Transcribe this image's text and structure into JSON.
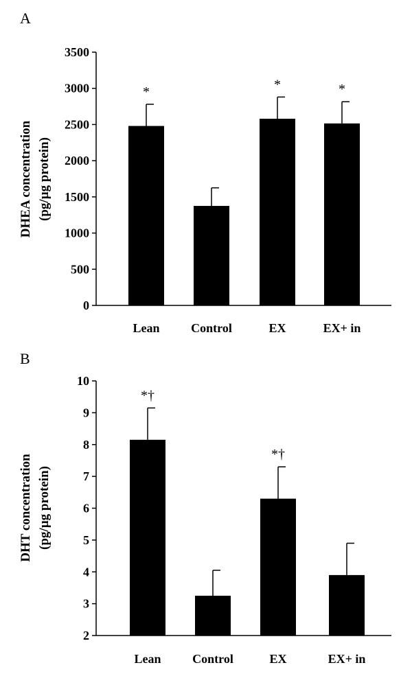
{
  "chart_data": [
    {
      "type": "bar",
      "panel": "A",
      "ylabel": "DHEA concentration",
      "ylabel_unit": "(pg/µg protein)",
      "categories": [
        "Lean",
        "Control",
        "EX",
        "EX+ in"
      ],
      "values": [
        2480,
        1375,
        2580,
        2515
      ],
      "errors": [
        300,
        250,
        300,
        300
      ],
      "annotations": [
        "*",
        "",
        "*",
        "*"
      ],
      "ylim": [
        0,
        3500
      ],
      "yticks": [
        0,
        500,
        1000,
        1500,
        2000,
        2500,
        3000,
        3500
      ],
      "bar_color": "#000000"
    },
    {
      "type": "bar",
      "panel": "B",
      "ylabel": "DHT concentration",
      "ylabel_unit": "(pg/µg protein)",
      "categories": [
        "Lean",
        "Control",
        "EX",
        "EX+ in"
      ],
      "values": [
        8.15,
        3.25,
        6.3,
        3.9
      ],
      "errors": [
        1.0,
        0.8,
        1.0,
        1.0
      ],
      "annotations": [
        "*†",
        "",
        "*†",
        ""
      ],
      "ylim": [
        2,
        10
      ],
      "yticks": [
        2,
        3,
        4,
        5,
        6,
        7,
        8,
        9,
        10
      ],
      "bar_color": "#000000"
    }
  ]
}
